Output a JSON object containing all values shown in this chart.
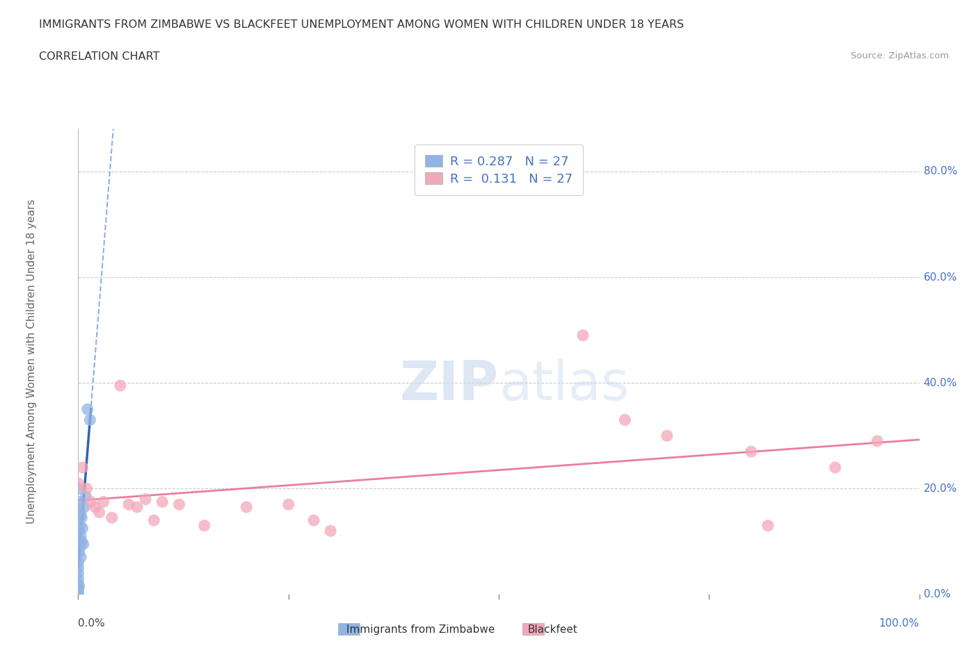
{
  "title": "IMMIGRANTS FROM ZIMBABWE VS BLACKFEET UNEMPLOYMENT AMONG WOMEN WITH CHILDREN UNDER 18 YEARS",
  "subtitle": "CORRELATION CHART",
  "source": "Source: ZipAtlas.com",
  "ylabel": "Unemployment Among Women with Children Under 18 years",
  "legend_label1": "Immigrants from Zimbabwe",
  "legend_label2": "Blackfeet",
  "r1": 0.287,
  "n1": 27,
  "r2": 0.131,
  "n2": 27,
  "color1": "#92b4e3",
  "color2": "#f4a7b9",
  "trendline1_color": "#5b8fd4",
  "trendline2_color": "#e87090",
  "watermark_zip": "ZIP",
  "watermark_atlas": "atlas",
  "zimbabwe_x": [
    0.0,
    0.0,
    0.0,
    0.0,
    0.0,
    0.0,
    0.0,
    0.0,
    0.001,
    0.001,
    0.001,
    0.001,
    0.001,
    0.002,
    0.002,
    0.002,
    0.003,
    0.003,
    0.003,
    0.004,
    0.004,
    0.005,
    0.006,
    0.007,
    0.009,
    0.011,
    0.014
  ],
  "zimbabwe_y": [
    0.0,
    0.005,
    0.01,
    0.02,
    0.03,
    0.04,
    0.05,
    0.06,
    0.015,
    0.08,
    0.12,
    0.16,
    0.2,
    0.09,
    0.13,
    0.175,
    0.07,
    0.11,
    0.15,
    0.1,
    0.145,
    0.125,
    0.095,
    0.165,
    0.185,
    0.35,
    0.33
  ],
  "blackfeet_x": [
    0.0,
    0.005,
    0.01,
    0.015,
    0.02,
    0.025,
    0.03,
    0.04,
    0.05,
    0.06,
    0.07,
    0.08,
    0.09,
    0.1,
    0.12,
    0.15,
    0.2,
    0.25,
    0.28,
    0.3,
    0.6,
    0.65,
    0.7,
    0.8,
    0.82,
    0.9,
    0.95
  ],
  "blackfeet_y": [
    0.21,
    0.24,
    0.2,
    0.175,
    0.165,
    0.155,
    0.175,
    0.145,
    0.395,
    0.17,
    0.165,
    0.18,
    0.14,
    0.175,
    0.17,
    0.13,
    0.165,
    0.17,
    0.14,
    0.12,
    0.49,
    0.33,
    0.3,
    0.27,
    0.13,
    0.24,
    0.29
  ],
  "xlim": [
    0.0,
    1.0
  ],
  "ylim": [
    0.0,
    0.88
  ],
  "ytick_vals": [
    0.0,
    0.2,
    0.4,
    0.6,
    0.8
  ],
  "ytick_labels": [
    "0.0%",
    "20.0%",
    "40.0%",
    "60.0%",
    "80.0%"
  ],
  "xtick_left_label": "0.0%",
  "xtick_right_label": "100.0%"
}
